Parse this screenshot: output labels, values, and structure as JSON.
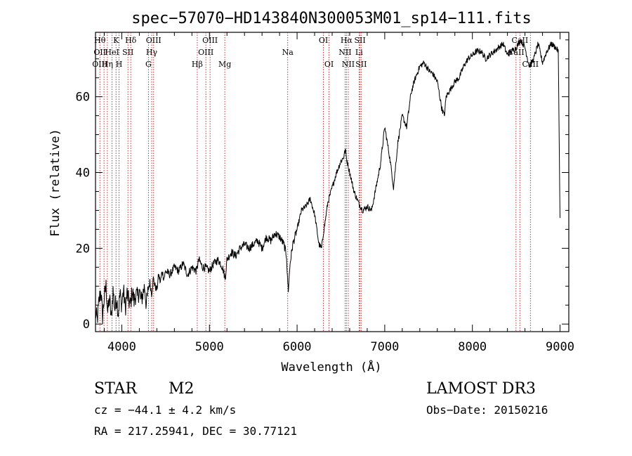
{
  "chart_data": {
    "type": "line",
    "title": "spec−57070−HD143840N300053M01_sp14−111.fits",
    "xlabel": "Wavelength (Å)",
    "ylabel": "Flux (relative)",
    "xlim": [
      3700,
      9100
    ],
    "ylim": [
      -2,
      77
    ],
    "xticks": [
      4000,
      5000,
      6000,
      7000,
      8000,
      9000
    ],
    "yticks": [
      0,
      20,
      40,
      60
    ],
    "grid": false,
    "series": [
      {
        "name": "flux",
        "x": [
          3700,
          3720,
          3740,
          3760,
          3780,
          3800,
          3820,
          3840,
          3860,
          3880,
          3900,
          3920,
          3940,
          3960,
          3980,
          4000,
          4020,
          4040,
          4060,
          4080,
          4100,
          4120,
          4140,
          4160,
          4180,
          4200,
          4220,
          4240,
          4260,
          4280,
          4300,
          4320,
          4340,
          4360,
          4380,
          4400,
          4420,
          4440,
          4460,
          4480,
          4500,
          4550,
          4600,
          4650,
          4700,
          4750,
          4800,
          4850,
          4880,
          4900,
          4920,
          4950,
          5000,
          5050,
          5100,
          5150,
          5180,
          5200,
          5250,
          5300,
          5350,
          5400,
          5450,
          5500,
          5550,
          5600,
          5650,
          5700,
          5750,
          5800,
          5850,
          5880,
          5890,
          5900,
          5920,
          5950,
          6000,
          6050,
          6100,
          6150,
          6200,
          6250,
          6280,
          6300,
          6320,
          6350,
          6400,
          6450,
          6500,
          6530,
          6550,
          6563,
          6580,
          6600,
          6650,
          6700,
          6750,
          6800,
          6850,
          6900,
          6950,
          7000,
          7050,
          7080,
          7100,
          7150,
          7200,
          7250,
          7300,
          7350,
          7400,
          7450,
          7500,
          7550,
          7600,
          7650,
          7680,
          7700,
          7750,
          7800,
          7850,
          7900,
          7950,
          8000,
          8050,
          8100,
          8150,
          8200,
          8250,
          8300,
          8350,
          8400,
          8450,
          8500,
          8550,
          8600,
          8650,
          8700,
          8750,
          8800,
          8850,
          8900,
          8950,
          8980,
          9000
        ],
        "values": [
          3,
          1,
          6,
          9,
          2,
          7,
          10,
          3,
          7,
          1,
          9,
          4,
          7,
          3,
          8,
          5,
          9,
          4,
          8,
          6,
          5,
          9,
          6,
          8,
          7,
          9,
          6,
          8,
          10,
          5,
          9,
          11,
          8,
          12,
          10,
          9,
          13,
          11,
          14,
          12,
          14,
          13,
          15,
          14,
          16,
          13,
          15,
          14,
          17,
          16,
          15,
          15,
          14,
          16,
          17,
          15,
          12,
          17,
          19,
          18,
          20,
          21,
          20,
          21,
          22,
          20,
          23,
          22,
          24,
          23,
          21,
          18,
          12,
          9,
          16,
          21,
          25,
          30,
          31,
          33,
          29,
          21,
          20,
          24,
          27,
          32,
          36,
          40,
          43,
          44,
          46,
          44,
          42,
          40,
          35,
          32,
          30,
          31,
          30,
          36,
          42,
          52,
          45,
          40,
          36,
          48,
          55,
          52,
          61,
          65,
          68,
          69,
          67,
          66,
          64,
          57,
          55,
          60,
          62,
          64,
          65,
          68,
          70,
          71,
          72,
          72,
          70,
          71,
          72,
          73,
          74,
          71,
          72,
          73,
          75,
          73,
          68,
          70,
          74,
          69,
          72,
          74,
          73,
          72,
          28
        ]
      }
    ],
    "lines": [
      {
        "wl": 3750,
        "labels": [
          "Hθ",
          "OII",
          "OIII"
        ],
        "rows": [
          0,
          1,
          2
        ]
      },
      {
        "wl": 3797,
        "labels": [],
        "rows": []
      },
      {
        "wl": 3835,
        "labels": [
          "Hη"
        ],
        "rows": [
          2
        ]
      },
      {
        "wl": 3889,
        "labels": [
          "HeI"
        ],
        "rows": [
          1
        ]
      },
      {
        "wl": 3934,
        "labels": [
          "K"
        ],
        "rows": [
          0
        ]
      },
      {
        "wl": 3969,
        "labels": [
          "H"
        ],
        "rows": [
          2
        ]
      },
      {
        "wl": 4070,
        "labels": [
          "SII"
        ],
        "rows": [
          1
        ]
      },
      {
        "wl": 4102,
        "labels": [
          "Hδ"
        ],
        "rows": [
          0
        ]
      },
      {
        "wl": 4304,
        "labels": [
          "G"
        ],
        "rows": [
          2
        ]
      },
      {
        "wl": 4341,
        "labels": [
          "Hγ"
        ],
        "rows": [
          1
        ]
      },
      {
        "wl": 4363,
        "labels": [
          "OIII"
        ],
        "rows": [
          0
        ]
      },
      {
        "wl": 4861,
        "labels": [
          "Hβ"
        ],
        "rows": [
          2
        ]
      },
      {
        "wl": 4959,
        "labels": [
          "OIII"
        ],
        "rows": [
          1
        ]
      },
      {
        "wl": 5007,
        "labels": [
          "OIII"
        ],
        "rows": [
          0
        ]
      },
      {
        "wl": 5175,
        "labels": [
          "Mg"
        ],
        "rows": [
          2
        ]
      },
      {
        "wl": 5893,
        "labels": [
          "Na"
        ],
        "rows": [
          1
        ]
      },
      {
        "wl": 6300,
        "labels": [
          "OI"
        ],
        "rows": [
          0
        ]
      },
      {
        "wl": 6364,
        "labels": [
          "OI"
        ],
        "rows": [
          2
        ]
      },
      {
        "wl": 6548,
        "labels": [
          "NII"
        ],
        "rows": [
          1
        ]
      },
      {
        "wl": 6563,
        "labels": [
          "Hα"
        ],
        "rows": [
          0
        ]
      },
      {
        "wl": 6584,
        "labels": [
          "NII"
        ],
        "rows": [
          2
        ]
      },
      {
        "wl": 6707,
        "labels": [
          "Li"
        ],
        "rows": [
          1
        ]
      },
      {
        "wl": 6717,
        "labels": [
          "SII"
        ],
        "rows": [
          0
        ]
      },
      {
        "wl": 6731,
        "labels": [
          "SII"
        ],
        "rows": [
          2
        ]
      },
      {
        "wl": 8498,
        "labels": [
          "CaII"
        ],
        "rows": [
          1
        ]
      },
      {
        "wl": 8542,
        "labels": [
          "CaII"
        ],
        "rows": [
          0
        ]
      },
      {
        "wl": 8662,
        "labels": [
          "CaII"
        ],
        "rows": [
          2
        ]
      }
    ]
  },
  "info": {
    "class": "STAR",
    "subclass": "M2",
    "survey": "LAMOST DR3",
    "cz": "cz = −44.1 ± 4.2 km/s",
    "obs_date": "Obs−Date: 20150216",
    "radec": "RA = 217.25941, DEC =  30.77121"
  },
  "colors": {
    "spectrum": "#000000",
    "line_marker": "#b22222",
    "background": "#ffffff"
  }
}
